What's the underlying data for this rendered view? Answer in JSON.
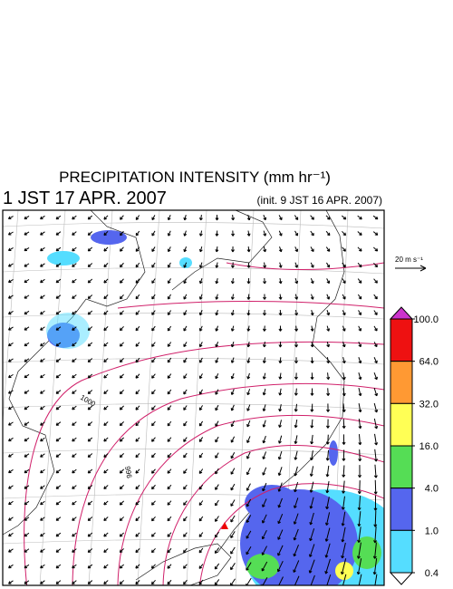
{
  "header": {
    "title": "PRECIPITATION INTENSITY (mm hr⁻¹)",
    "valid_time": "1 JST 17 APR. 2007",
    "init_time": "(init. 9 JST 16 APR. 2007)"
  },
  "wind_scale": {
    "label": "20 m s⁻¹"
  },
  "isobar_labels": [
    "1000",
    "996"
  ],
  "colorbar": {
    "ticks": [
      {
        "value": 100,
        "label": "100.0"
      },
      {
        "value": 64,
        "label": "64.0"
      },
      {
        "value": 32,
        "label": "32.0"
      },
      {
        "value": 16,
        "label": "16.0"
      },
      {
        "value": 4,
        "label": "4.0"
      },
      {
        "value": 1,
        "label": "1.0"
      },
      {
        "value": 0.4,
        "label": "0.4"
      }
    ],
    "colors": [
      "#cc33cc",
      "#ee1111",
      "#ff9933",
      "#ffff55",
      "#55dd55",
      "#5566ee",
      "#55ddff",
      "#ffffff"
    ]
  }
}
